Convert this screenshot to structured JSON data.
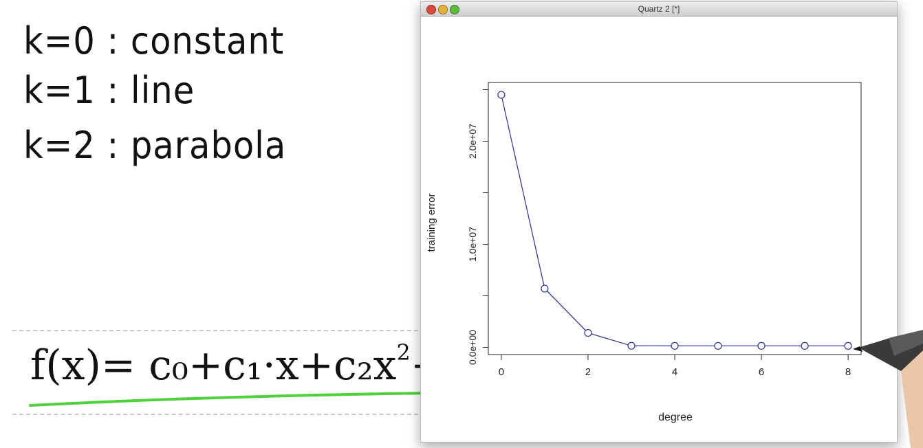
{
  "notes": {
    "k0": "k=0 : constant",
    "k1": "k=1 : line",
    "k2": "k=2 : parabola",
    "formula_main": "f(x)= c₀+c₁·x+c₂x",
    "formula_exp": "2",
    "formula_tail": "+ ···"
  },
  "window": {
    "title": "Quartz 2 [*]"
  },
  "colors": {
    "series": "#3a3a9a",
    "underline": "#4ed23a"
  },
  "chart_data": {
    "type": "line",
    "xlabel": "degree",
    "ylabel": "training error",
    "x": [
      0,
      1,
      2,
      3,
      4,
      5,
      6,
      7,
      8
    ],
    "y": [
      24500000,
      5700000,
      1400000,
      150000,
      140000,
      140000,
      140000,
      140000,
      140000
    ],
    "xlim": [
      -0.3,
      8.3
    ],
    "ylim": [
      -700000,
      25700000
    ],
    "xticks": [
      "0",
      "2",
      "4",
      "6",
      "8"
    ],
    "yticks": [
      "0.0e+00",
      "1.0e+07",
      "2.0e+07"
    ],
    "markers": "open circles",
    "grid": false
  }
}
